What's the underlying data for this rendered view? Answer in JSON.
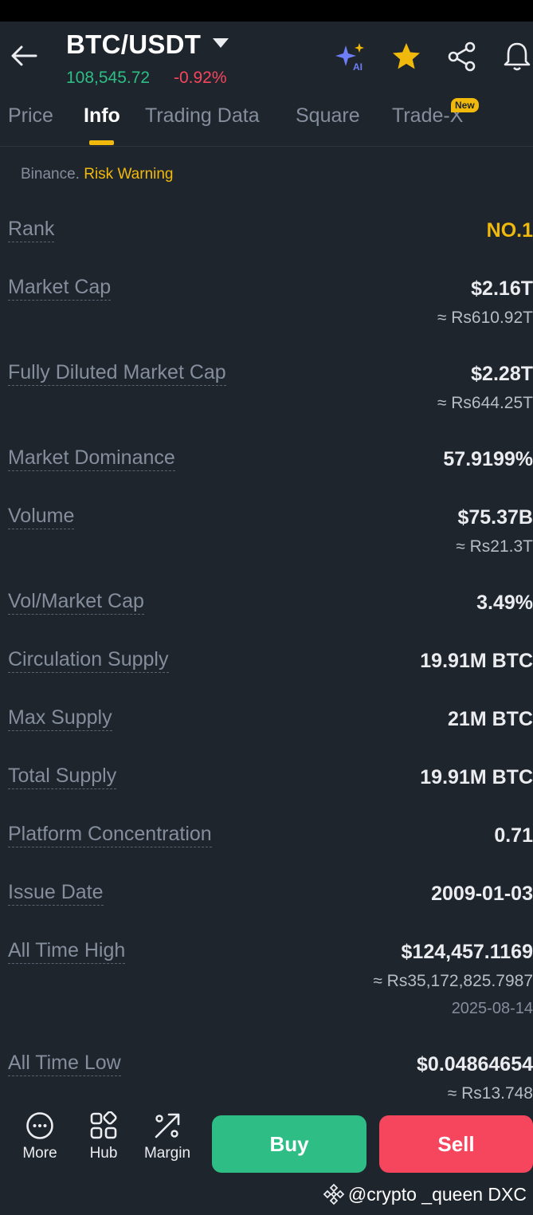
{
  "header": {
    "pair": "BTC/USDT",
    "price": "108,545.72",
    "change": "-0.92%"
  },
  "tabs": [
    {
      "label": "Price"
    },
    {
      "label": "Info"
    },
    {
      "label": "Trading Data"
    },
    {
      "label": "Square"
    },
    {
      "label": "Trade-X"
    }
  ],
  "new_badge": "New",
  "notice": {
    "prefix": "Binance.",
    "link": "Risk Warning"
  },
  "rows": {
    "rank": {
      "label": "Rank",
      "value": "NO.1"
    },
    "market_cap": {
      "label": "Market Cap",
      "value": "$2.16T",
      "sub": "≈ Rs610.92T"
    },
    "fdmc": {
      "label": "Fully Diluted Market Cap",
      "value": "$2.28T",
      "sub": "≈ Rs644.25T"
    },
    "dominance": {
      "label": "Market Dominance",
      "value": "57.9199%"
    },
    "volume": {
      "label": "Volume",
      "value": "$75.37B",
      "sub": "≈ Rs21.3T"
    },
    "vol_mcap": {
      "label": "Vol/Market Cap",
      "value": "3.49%"
    },
    "circulation": {
      "label": "Circulation Supply",
      "value": "19.91M BTC"
    },
    "max_supply": {
      "label": "Max Supply",
      "value": "21M BTC"
    },
    "total_supply": {
      "label": "Total Supply",
      "value": "19.91M BTC"
    },
    "platform": {
      "label": "Platform Concentration",
      "value": "0.71"
    },
    "issue_date": {
      "label": "Issue Date",
      "value": "2009-01-03"
    },
    "ath": {
      "label": "All Time High",
      "value": "$124,457.1169",
      "sub": "≈ Rs35,172,825.7987",
      "date": "2025-08-14"
    },
    "atl": {
      "label": "All Time Low",
      "value": "$0.04864654",
      "sub": "≈ Rs13.748"
    }
  },
  "bottom_nav": {
    "more": "More",
    "hub": "Hub",
    "margin": "Margin",
    "buy": "Buy",
    "sell": "Sell"
  },
  "watermark": "@crypto _queen DXC",
  "colors": {
    "background": "#1f252d",
    "up": "#2ebd85",
    "down": "#f6465d",
    "accent": "#f0b90b",
    "muted": "#848e9c"
  }
}
